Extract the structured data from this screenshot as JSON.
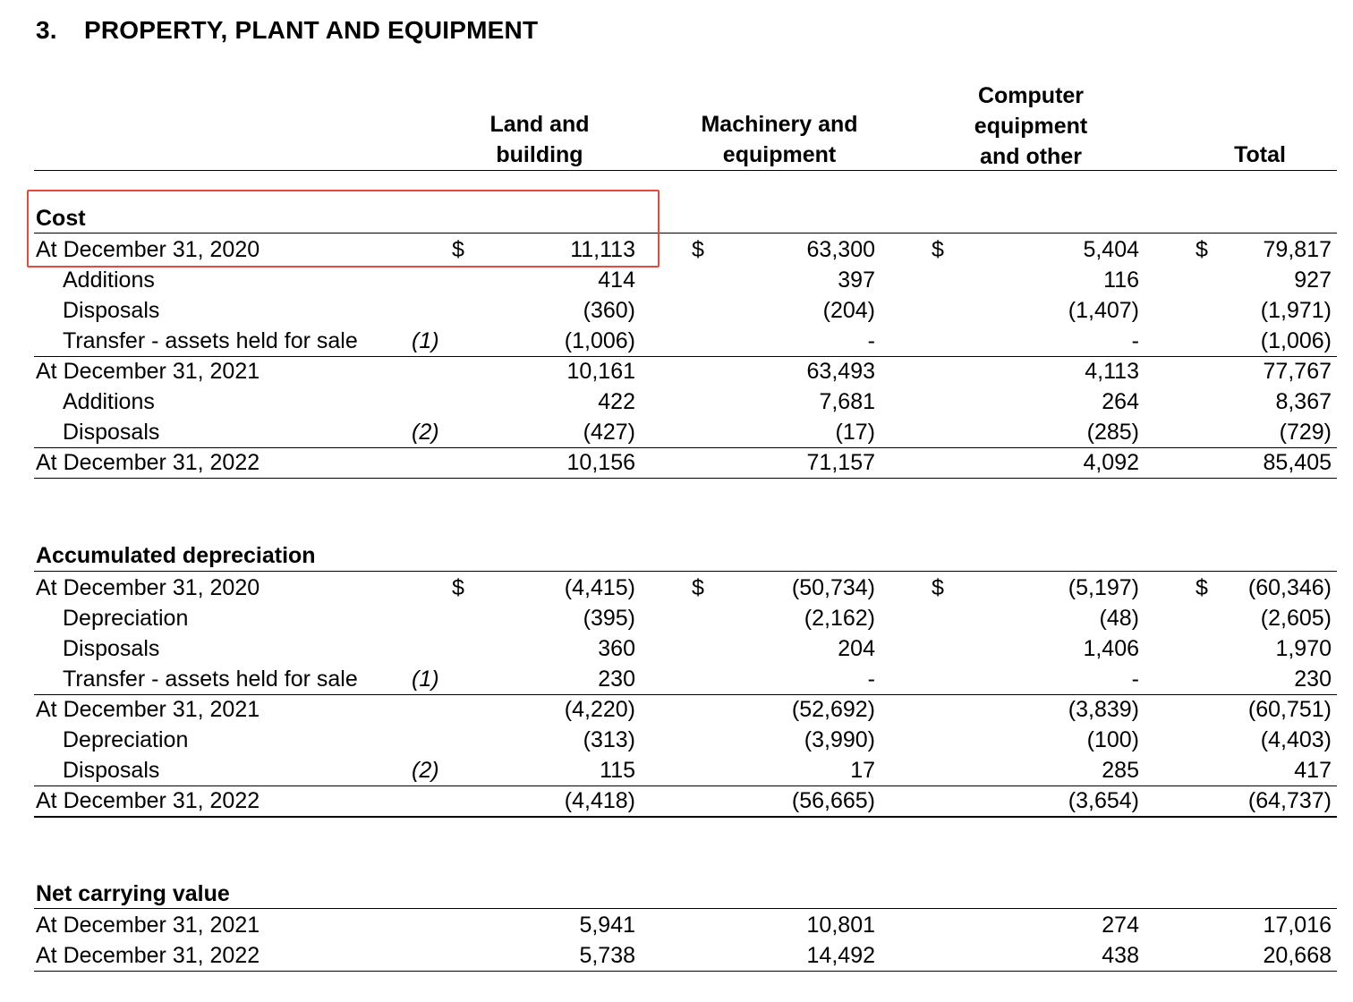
{
  "note": {
    "number": "3.",
    "title": "PROPERTY, PLANT AND EQUIPMENT"
  },
  "columns": [
    [
      "Land and",
      "building"
    ],
    [
      "Machinery and",
      "equipment"
    ],
    [
      "Computer",
      "equipment",
      "and other"
    ],
    [
      "Total"
    ]
  ],
  "sections": {
    "cost": {
      "heading": "Cost",
      "rows": [
        {
          "label": "At December 31, 2020",
          "indent": false,
          "note": "",
          "dollar": true,
          "values": [
            "11,113",
            "63,300",
            "5,404",
            "79,817"
          ],
          "line_below": false
        },
        {
          "label": "Additions",
          "indent": true,
          "note": "",
          "dollar": false,
          "values": [
            "414",
            "397",
            "116",
            "927"
          ],
          "line_below": false
        },
        {
          "label": "Disposals",
          "indent": true,
          "note": "",
          "dollar": false,
          "values": [
            "(360)",
            "(204)",
            "(1,407)",
            "(1,971)"
          ],
          "line_below": false
        },
        {
          "label": "Transfer - assets held for sale",
          "indent": true,
          "note": "(1)",
          "dollar": false,
          "values": [
            "(1,006)",
            "-",
            "-",
            "(1,006)"
          ],
          "line_below": true
        },
        {
          "label": "At December 31, 2021",
          "indent": false,
          "note": "",
          "dollar": false,
          "values": [
            "10,161",
            "63,493",
            "4,113",
            "77,767"
          ],
          "line_below": false
        },
        {
          "label": "Additions",
          "indent": true,
          "note": "",
          "dollar": false,
          "values": [
            "422",
            "7,681",
            "264",
            "8,367"
          ],
          "line_below": false
        },
        {
          "label": "Disposals",
          "indent": true,
          "note": "(2)",
          "dollar": false,
          "values": [
            "(427)",
            "(17)",
            "(285)",
            "(729)"
          ],
          "line_below": true
        },
        {
          "label": "At December 31, 2022",
          "indent": false,
          "note": "",
          "dollar": false,
          "values": [
            "10,156",
            "71,157",
            "4,092",
            "85,405"
          ],
          "line_below": true
        }
      ]
    },
    "depreciation": {
      "heading": "Accumulated depreciation",
      "rows": [
        {
          "label": "At December 31, 2020",
          "indent": false,
          "note": "",
          "dollar": true,
          "values": [
            "(4,415)",
            "(50,734)",
            "(5,197)",
            "(60,346)"
          ],
          "line_below": false
        },
        {
          "label": "Depreciation",
          "indent": true,
          "note": "",
          "dollar": false,
          "values": [
            "(395)",
            "(2,162)",
            "(48)",
            "(2,605)"
          ],
          "line_below": false
        },
        {
          "label": "Disposals",
          "indent": true,
          "note": "",
          "dollar": false,
          "values": [
            "360",
            "204",
            "1,406",
            "1,970"
          ],
          "line_below": false
        },
        {
          "label": "Transfer - assets held for sale",
          "indent": true,
          "note": "(1)",
          "dollar": false,
          "values": [
            "230",
            "-",
            "-",
            "230"
          ],
          "line_below": true
        },
        {
          "label": "At December 31, 2021",
          "indent": false,
          "note": "",
          "dollar": false,
          "values": [
            "(4,220)",
            "(52,692)",
            "(3,839)",
            "(60,751)"
          ],
          "line_below": false
        },
        {
          "label": "Depreciation",
          "indent": true,
          "note": "",
          "dollar": false,
          "values": [
            "(313)",
            "(3,990)",
            "(100)",
            "(4,403)"
          ],
          "line_below": false
        },
        {
          "label": "Disposals",
          "indent": true,
          "note": "(2)",
          "dollar": false,
          "values": [
            "115",
            "17",
            "285",
            "417"
          ],
          "line_below": true
        },
        {
          "label": "At December 31, 2022",
          "indent": false,
          "note": "",
          "dollar": false,
          "values": [
            "(4,418)",
            "(56,665)",
            "(3,654)",
            "(64,737)"
          ],
          "line_below": true
        }
      ]
    },
    "net": {
      "heading": "Net carrying value",
      "rows": [
        {
          "label": "At December 31, 2021",
          "indent": false,
          "note": "",
          "dollar": false,
          "values": [
            "5,941",
            "10,801",
            "274",
            "17,016"
          ],
          "line_below": false
        },
        {
          "label": "At December 31, 2022",
          "indent": false,
          "note": "",
          "dollar": false,
          "values": [
            "5,738",
            "14,492",
            "438",
            "20,668"
          ],
          "line_below": true
        }
      ]
    }
  },
  "currency_symbol": "$",
  "highlight_color": "#e8483f"
}
